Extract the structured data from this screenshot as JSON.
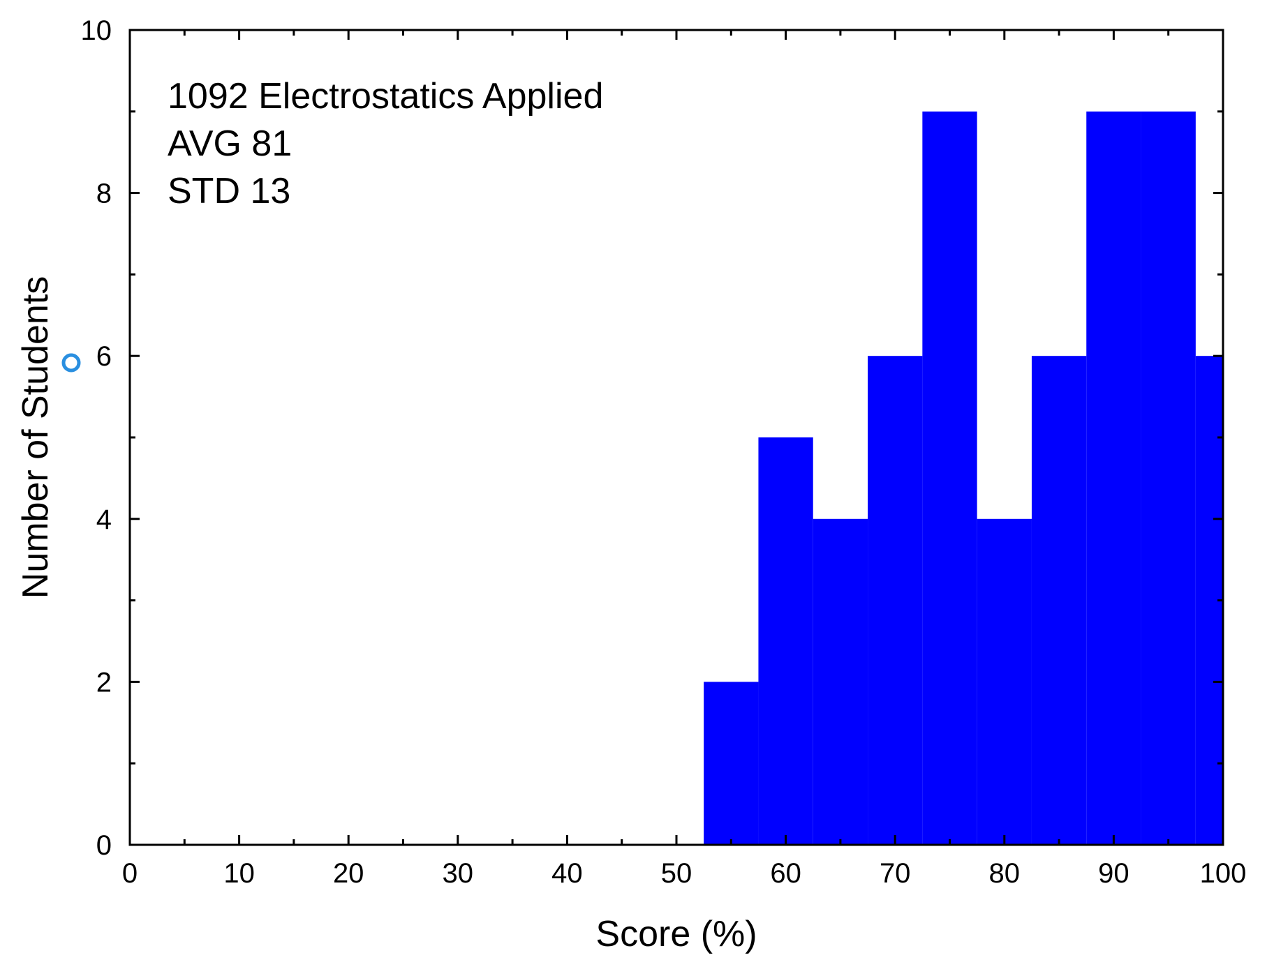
{
  "chart_data": {
    "type": "bar",
    "bin_width": 5,
    "x": [
      55,
      60,
      65,
      70,
      75,
      80,
      85,
      90,
      95,
      100
    ],
    "values": [
      2,
      5,
      4,
      6,
      9,
      4,
      6,
      9,
      9,
      6
    ],
    "xlabel": "Score (%)",
    "ylabel": "Number of Students",
    "xlim": [
      0,
      100
    ],
    "ylim": [
      0,
      10
    ],
    "x_ticks": [
      0,
      10,
      20,
      30,
      40,
      50,
      60,
      70,
      80,
      90,
      100
    ],
    "y_ticks": [
      0,
      2,
      4,
      6,
      8,
      10
    ],
    "x_minor_step": 5,
    "y_minor_step": 1,
    "grid": false,
    "bar_color": "#0000ff",
    "annotations": [
      "1092 Electrostatics Applied",
      "AVG 81",
      "STD 13"
    ],
    "marker_color": "#2a8fe0"
  }
}
